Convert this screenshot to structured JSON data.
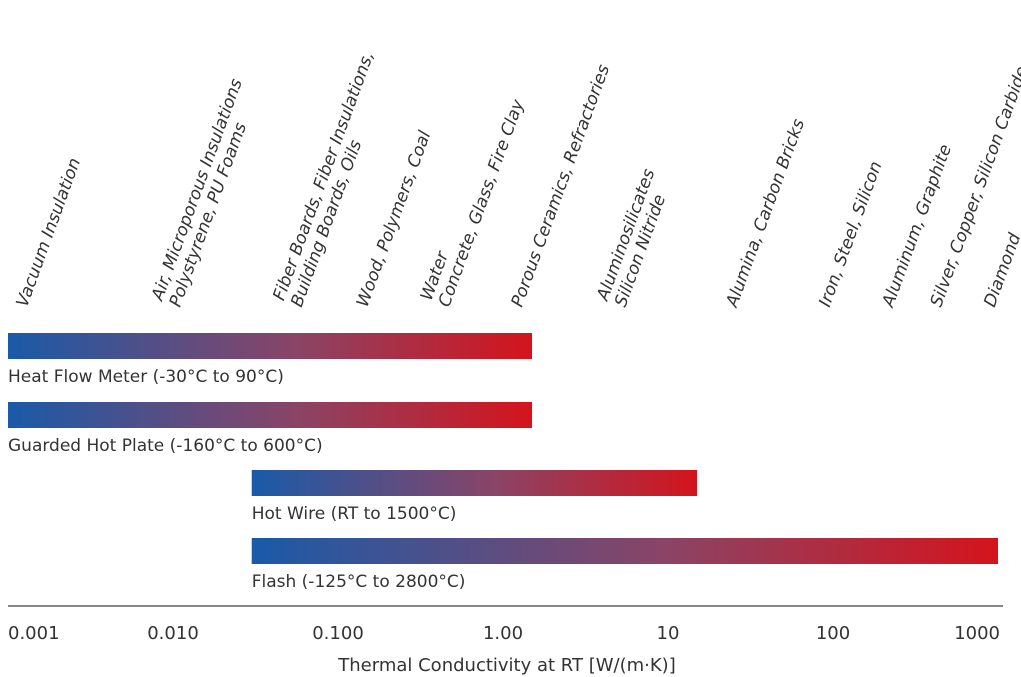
{
  "chart_data": {
    "type": "range-bar",
    "xscale": "log",
    "xlim": [
      0.001,
      1000
    ],
    "xlabel": "Thermal Conductivity at RT [W/(m·K)]",
    "ticks": [
      {
        "value": 0.001,
        "label": "0.001"
      },
      {
        "value": 0.01,
        "label": "0.010"
      },
      {
        "value": 0.1,
        "label": "0.100"
      },
      {
        "value": 1,
        "label": "1.00"
      },
      {
        "value": 10,
        "label": "10"
      },
      {
        "value": 100,
        "label": "100"
      },
      {
        "value": 1000,
        "label": "1000"
      }
    ],
    "materials": [
      {
        "value": 0.0013,
        "lines": [
          "Vacuum Insulation"
        ]
      },
      {
        "value": 0.011,
        "lines": [
          "Air, Microporous Insulations",
          "Polystyrene, PU Foams"
        ]
      },
      {
        "value": 0.06,
        "lines": [
          "Fiber Boards, Fiber Insulations,",
          "Building Boards, Oils"
        ]
      },
      {
        "value": 0.15,
        "lines": [
          "Wood, Polymers, Coal"
        ]
      },
      {
        "value": 0.47,
        "lines": [
          "Water",
          "Concrete, Glass, Fire Clay"
        ]
      },
      {
        "value": 1.3,
        "lines": [
          "Porous Ceramics, Refractories"
        ]
      },
      {
        "value": 5.5,
        "lines": [
          "Aluminosilicates",
          "Silicon Nitride"
        ]
      },
      {
        "value": 26,
        "lines": [
          "Alumina, Carbon Bricks"
        ]
      },
      {
        "value": 95,
        "lines": [
          "Iron, Steel, Silicon"
        ]
      },
      {
        "value": 230,
        "lines": [
          "Aluminum, Graphite"
        ]
      },
      {
        "value": 450,
        "lines": [
          "Silver, Copper, Silicon Carbide"
        ]
      },
      {
        "value": 950,
        "lines": [
          "Diamond"
        ]
      }
    ],
    "ranges": [
      {
        "name": "Heat Flow Meter (-30°C to 90°C)",
        "min": 0.001,
        "max": 1.5
      },
      {
        "name": "Guarded Hot Plate (-160°C to 600°C)",
        "min": 0.001,
        "max": 1.5
      },
      {
        "name": "Hot Wire (RT to 1500°C)",
        "min": 0.03,
        "max": 15
      },
      {
        "name": "Flash (-125°C to 2800°C)",
        "min": 0.03,
        "max": 1000
      }
    ],
    "colors": {
      "bar_start": "#1a5aa8",
      "bar_end": "#d4141c",
      "axis": "#888888",
      "text": "#333333"
    }
  }
}
